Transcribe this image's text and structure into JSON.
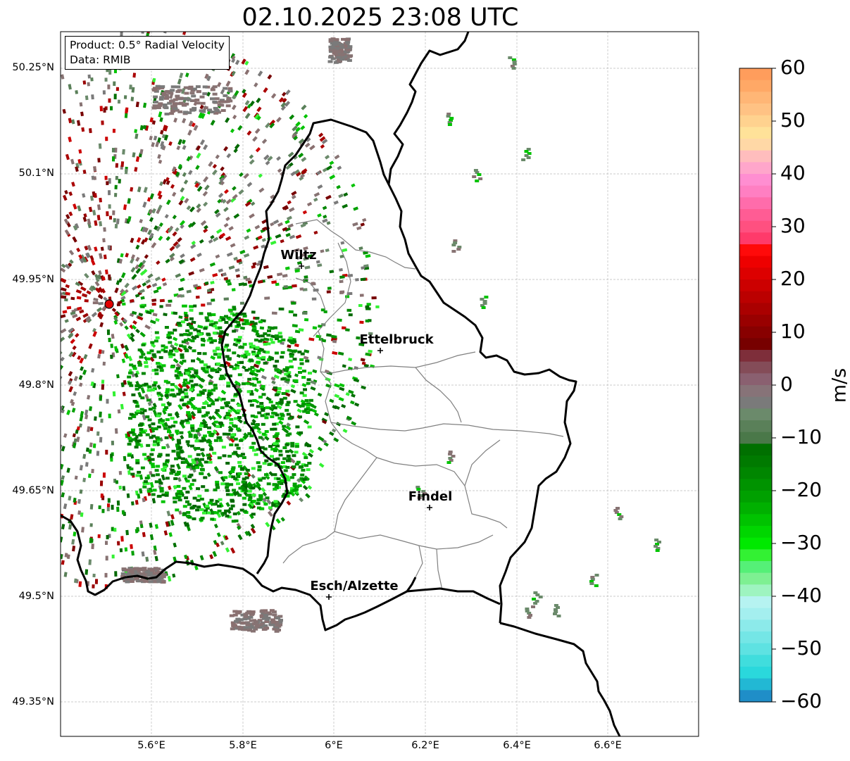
{
  "title": "02.10.2025 23:08 UTC",
  "info_box": {
    "product": "Product: 0.5° Radial Velocity",
    "data": "Data: RMIB"
  },
  "axes": {
    "lat_ticks": [
      "50.25°N",
      "50.1°N",
      "49.95°N",
      "49.8°N",
      "49.65°N",
      "49.5°N",
      "49.35°N"
    ],
    "lon_ticks": [
      "5.6°E",
      "5.8°E",
      "6°E",
      "6.2°E",
      "6.4°E",
      "6.6°E"
    ]
  },
  "colorbar": {
    "label": "m/s",
    "range": [
      -60,
      60
    ],
    "ticks": [
      "60",
      "50",
      "40",
      "30",
      "20",
      "10",
      "0",
      "−10",
      "−20",
      "−30",
      "−40",
      "−50",
      "−60"
    ],
    "colors_top_to_bottom": [
      "#ff9d5c",
      "#ffa866",
      "#ffb676",
      "#ffc284",
      "#ffd28f",
      "#ffe299",
      "#ffd8a6",
      "#ffbdbd",
      "#ffa6cb",
      "#ff8ed1",
      "#ff7fc2",
      "#ff6cab",
      "#ff5c94",
      "#ff5080",
      "#ff3a6a",
      "#ff0a0a",
      "#ee0000",
      "#dd0000",
      "#cc0000",
      "#bb0000",
      "#aa0000",
      "#990000",
      "#880000",
      "#770000",
      "#7e2e3a",
      "#844c58",
      "#8a6070",
      "#877378",
      "#7a7a7a",
      "#6b8a6b",
      "#5a8059",
      "#4a7849",
      "#007000",
      "#007a00",
      "#008600",
      "#009300",
      "#00a000",
      "#00b000",
      "#00c300",
      "#00d600",
      "#00e900",
      "#33f133",
      "#55f077",
      "#7ef092",
      "#9ef4c0",
      "#b6f3f1",
      "#a4efef",
      "#8ceaea",
      "#74e6e6",
      "#5ee2e2",
      "#40dddd",
      "#2ad8dc",
      "#22b8d4",
      "#1f8ec8"
    ]
  },
  "cities": [
    {
      "name": "Wiltz"
    },
    {
      "name": "Ettelbruck"
    },
    {
      "name": "Findel"
    },
    {
      "name": "Esch/Alzette"
    }
  ],
  "radar_site": {
    "marker_color": "#e00000"
  },
  "colors": {
    "border": "#000000",
    "cantons": "#808080",
    "grid": "#bbbbbb"
  }
}
